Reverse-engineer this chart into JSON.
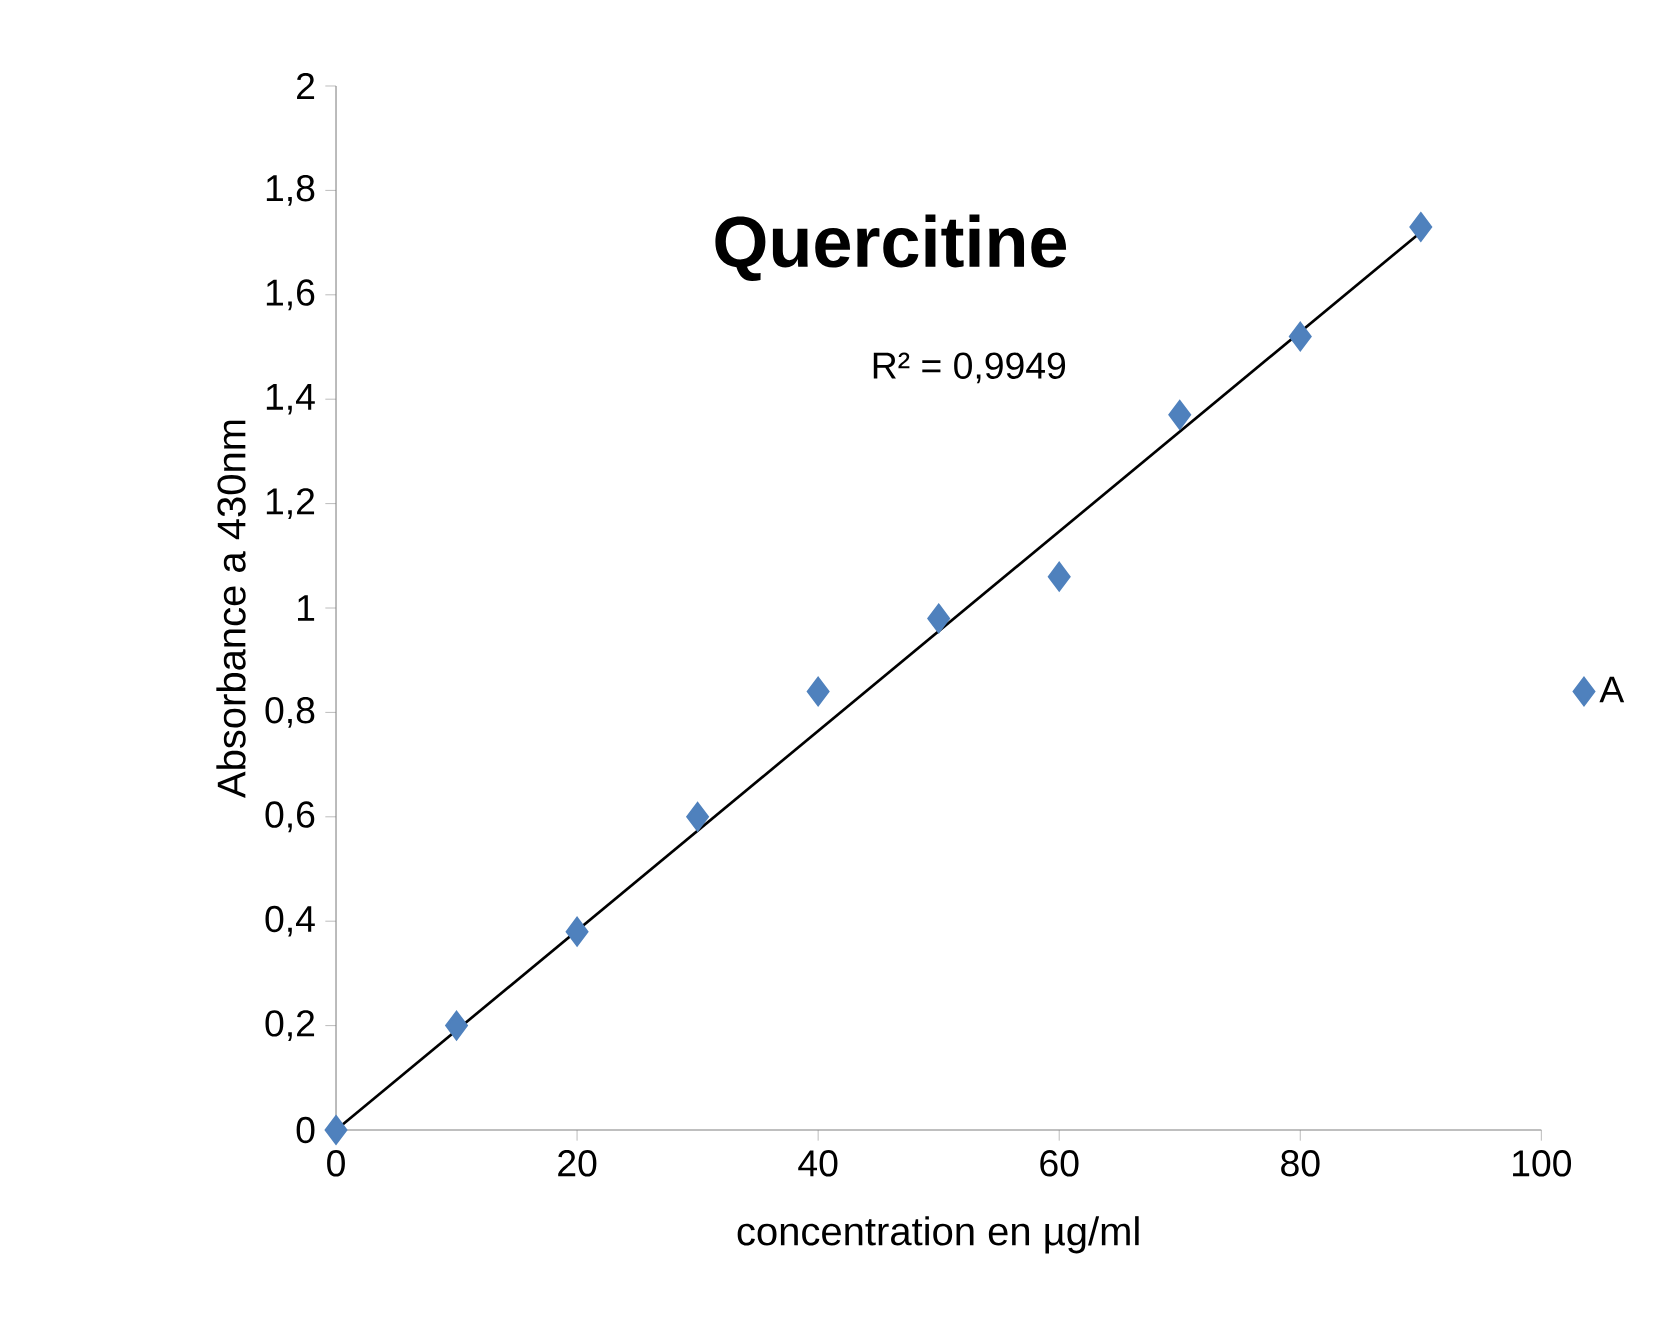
{
  "chart_data": {
    "type": "scatter",
    "title": "Quercitine",
    "xlabel": "concentration en µg/ml",
    "ylabel": "Absorbance a 430nm",
    "annotations": [
      "R² = 0,9949"
    ],
    "xlim": [
      0,
      100
    ],
    "xticks": [
      0,
      20,
      40,
      60,
      80,
      100
    ],
    "ylim": [
      0,
      2
    ],
    "yticks": [
      0,
      {
        "value": 0.2,
        "label": "0,2"
      },
      {
        "value": 0.4,
        "label": "0,4"
      },
      {
        "value": 0.6,
        "label": "0,6"
      },
      {
        "value": 0.8,
        "label": "0,8"
      },
      1,
      {
        "value": 1.2,
        "label": "1,2"
      },
      {
        "value": 1.4,
        "label": "1,4"
      },
      {
        "value": 1.6,
        "label": "1,6"
      },
      {
        "value": 1.8,
        "label": "1,8"
      },
      2
    ],
    "series": [
      {
        "name": "A",
        "color": "#4f81bd",
        "marker": "diamond",
        "x": [
          0,
          10,
          20,
          30,
          40,
          50,
          60,
          70,
          80,
          90
        ],
        "values": [
          0,
          0.2,
          0.38,
          0.6,
          0.84,
          0.98,
          1.06,
          1.37,
          1.52,
          1.73
        ]
      },
      {
        "type": "line",
        "color": "#000000",
        "marker": "none",
        "line_style": "solid",
        "x": [
          0,
          90
        ],
        "values": [
          0,
          1.72
        ]
      }
    ],
    "legend": "right",
    "grid": false
  }
}
